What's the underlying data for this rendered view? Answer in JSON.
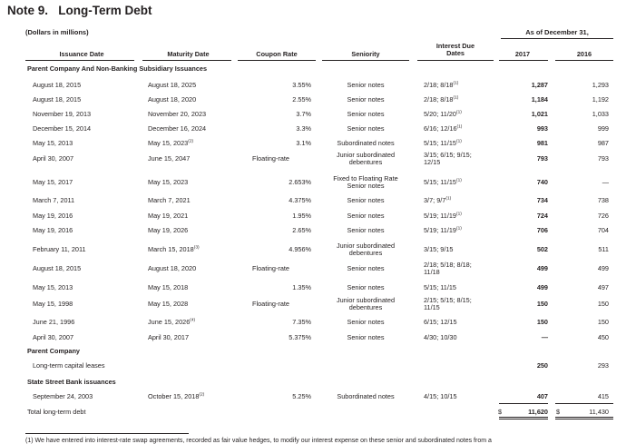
{
  "title": "Note 9.   Long-Term Debt",
  "units": "(Dollars in millions)",
  "as_of": "As of December 31,",
  "headers": {
    "issuance": "Issuance Date",
    "maturity": "Maturity Date",
    "coupon": "Coupon Rate",
    "seniority": "Seniority",
    "interest_1": "Interest Due",
    "interest_2": "Dates",
    "y2017": "2017",
    "y2016": "2016"
  },
  "sections": {
    "parent_nonbank": "Parent Company And Non-Banking Subsidiary Issuances",
    "parent": "Parent Company",
    "ssb": "State Street Bank issuances"
  },
  "rows": [
    {
      "iss": "August 18, 2015",
      "mat": "August 18, 2025",
      "mat_note": "",
      "cr": "3.55%",
      "sen1": "Senior notes",
      "sen2": "",
      "int1": "2/18; 8/18",
      "int_note": "(1)",
      "int2": "",
      "v17": "1,287",
      "v16": "1,293"
    },
    {
      "iss": "August 18, 2015",
      "mat": "August 18, 2020",
      "mat_note": "",
      "cr": "2.55%",
      "sen1": "Senior notes",
      "sen2": "",
      "int1": "2/18; 8/18",
      "int_note": "(1)",
      "int2": "",
      "v17": "1,184",
      "v16": "1,192"
    },
    {
      "iss": "November 19, 2013",
      "mat": "November 20, 2023",
      "mat_note": "",
      "cr": "3.7%",
      "sen1": "Senior notes",
      "sen2": "",
      "int1": "5/20; 11/20",
      "int_note": "(1)",
      "int2": "",
      "v17": "1,021",
      "v16": "1,033"
    },
    {
      "iss": "December 15, 2014",
      "mat": "December 16, 2024",
      "mat_note": "",
      "cr": "3.3%",
      "sen1": "Senior notes",
      "sen2": "",
      "int1": "6/16; 12/16",
      "int_note": "(1)",
      "int2": "",
      "v17": "993",
      "v16": "999"
    },
    {
      "iss": "May 15, 2013",
      "mat": "May 15, 2023",
      "mat_note": "(2)",
      "cr": "3.1%",
      "sen1": "Subordinated notes",
      "sen2": "",
      "int1": "5/15; 11/15",
      "int_note": "(1)",
      "int2": "",
      "v17": "981",
      "v16": "987"
    },
    {
      "iss": "April 30, 2007",
      "mat": "June 15, 2047",
      "mat_note": "",
      "cr": "Floating-rate",
      "sen1": "Junior subordinated",
      "sen2": "debentures",
      "int1": "3/15; 6/15; 9/15;",
      "int_note": "",
      "int2": "12/15",
      "v17": "793",
      "v16": "793"
    },
    {
      "iss": "May 15, 2017",
      "mat": "May 15, 2023",
      "mat_note": "",
      "cr": "2.653%",
      "sen1": "Fixed to Floating Rate",
      "sen2": "Senior notes",
      "int1": "5/15; 11/15",
      "int_note": "(1)",
      "int2": "",
      "v17": "740",
      "v16": "—"
    },
    {
      "iss": "March 7, 2011",
      "mat": "March 7, 2021",
      "mat_note": "",
      "cr": "4.375%",
      "sen1": "Senior notes",
      "sen2": "",
      "int1": "3/7; 9/7",
      "int_note": "(1)",
      "int2": "",
      "v17": "734",
      "v16": "738"
    },
    {
      "iss": "May 19, 2016",
      "mat": "May 19, 2021",
      "mat_note": "",
      "cr": "1.95%",
      "sen1": "Senior notes",
      "sen2": "",
      "int1": "5/19; 11/19",
      "int_note": "(1)",
      "int2": "",
      "v17": "724",
      "v16": "726"
    },
    {
      "iss": "May 19, 2016",
      "mat": "May 19, 2026",
      "mat_note": "",
      "cr": "2.65%",
      "sen1": "Senior notes",
      "sen2": "",
      "int1": "5/19; 11/19",
      "int_note": "(1)",
      "int2": "",
      "v17": "706",
      "v16": "704"
    },
    {
      "iss": "February 11, 2011",
      "mat": "March 15, 2018",
      "mat_note": "(3)",
      "cr": "4.956%",
      "sen1": "Junior subordinated",
      "sen2": "debentures",
      "int1": "3/15; 9/15",
      "int_note": "",
      "int2": "",
      "v17": "502",
      "v16": "511"
    },
    {
      "iss": "August 18, 2015",
      "mat": "August 18, 2020",
      "mat_note": "",
      "cr": "Floating-rate",
      "sen1": "Senior notes",
      "sen2": "",
      "int1": "2/18; 5/18; 8/18;",
      "int_note": "",
      "int2": "11/18",
      "v17": "499",
      "v16": "499"
    },
    {
      "iss": "May 15, 2013",
      "mat": "May 15, 2018",
      "mat_note": "",
      "cr": "1.35%",
      "sen1": "Senior notes",
      "sen2": "",
      "int1": "5/15; 11/15",
      "int_note": "",
      "int2": "",
      "v17": "499",
      "v16": "497"
    },
    {
      "iss": "May 15, 1998",
      "mat": "May 15, 2028",
      "mat_note": "",
      "cr": "Floating-rate",
      "sen1": "Junior subordinated",
      "sen2": "debentures",
      "int1": "2/15; 5/15; 8/15;",
      "int_note": "",
      "int2": "11/15",
      "v17": "150",
      "v16": "150"
    },
    {
      "iss": "June 21, 1996",
      "mat": "June 15, 2026",
      "mat_note": "(4)",
      "cr": "7.35%",
      "sen1": "Senior notes",
      "sen2": "",
      "int1": "6/15; 12/15",
      "int_note": "",
      "int2": "",
      "v17": "150",
      "v16": "150"
    },
    {
      "iss": "April 30, 2007",
      "mat": "April 30, 2017",
      "mat_note": "",
      "cr": "5.375%",
      "sen1": "Senior notes",
      "sen2": "",
      "int1": "4/30; 10/30",
      "int_note": "",
      "int2": "",
      "v17": "—",
      "v16": "450"
    }
  ],
  "lease_row": {
    "iss": "Long-term capital leases",
    "v17": "250",
    "v16": "293"
  },
  "ssb_row": {
    "iss": "September 24, 2003",
    "mat": "October 15, 2018",
    "mat_note": "(2)",
    "cr": "5.25%",
    "sen1": "Subordinated notes",
    "int1": "4/15; 10/15",
    "v17": "407",
    "v16": "415"
  },
  "total": {
    "label": "Total long-term debt",
    "cur": "$",
    "v17": "11,620",
    "v16": "11,430"
  },
  "footnote": "(1) We have entered into interest-rate swap agreements, recorded as fair value hedges, to modify our interest expense on these senior and subordinated notes from a"
}
